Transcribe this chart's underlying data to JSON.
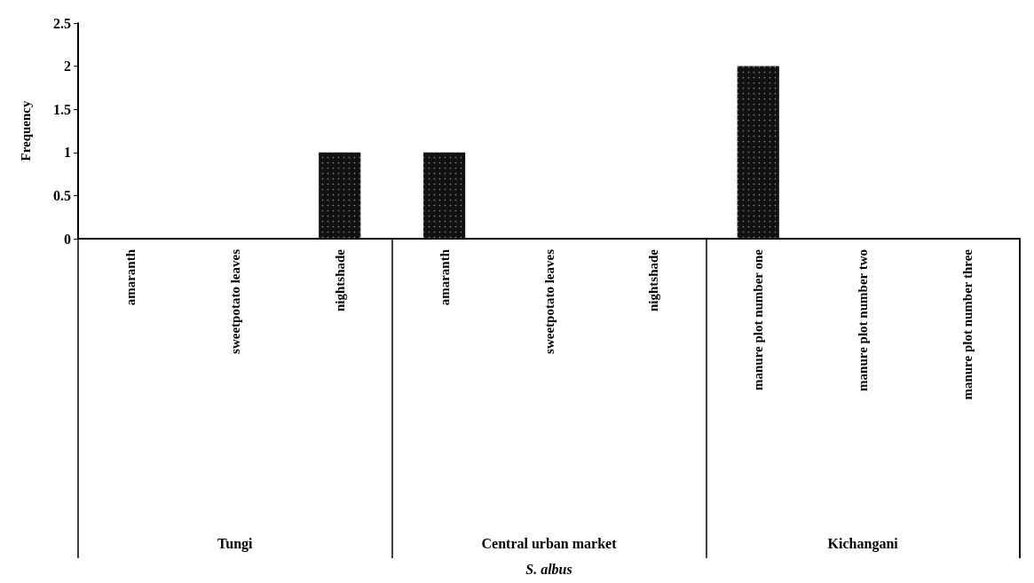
{
  "chart_data": {
    "type": "bar",
    "ylabel": "Frequency",
    "categories": [
      "amaranth",
      "sweetpotato leaves",
      "nightshade",
      "amaranth",
      "sweetpotato leaves",
      "nightshade",
      "manure plot number one",
      "manure plot number two",
      "manure plot number three"
    ],
    "values": [
      0,
      0,
      1,
      1,
      0,
      0,
      2,
      0,
      0
    ],
    "color": "#111111",
    "ylim": [
      0,
      2.5
    ],
    "yticks": [
      0,
      0.5,
      1,
      1.5,
      2,
      2.5
    ],
    "grid": false,
    "annotations": [
      "Tungi",
      "Central urban market",
      "Kichangani",
      "S. albus"
    ]
  }
}
